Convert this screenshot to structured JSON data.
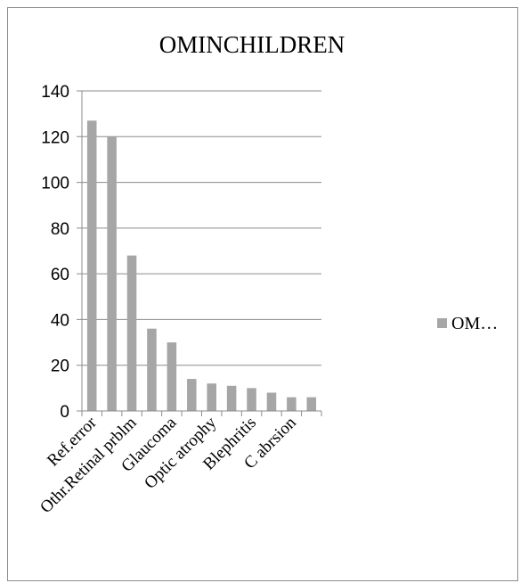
{
  "chart_data": {
    "type": "bar",
    "title": "OMINCHILDREN",
    "xlabel": "",
    "ylabel": "",
    "ylim": [
      0,
      140
    ],
    "yticks": [
      0,
      20,
      40,
      60,
      80,
      100,
      120,
      140
    ],
    "grid": true,
    "legend_position": "right",
    "categories": [
      "Ref.error",
      "",
      "Othr.Retinal prblm",
      "",
      "Glaucoma",
      "",
      "Optic atrophy",
      "",
      "Blephritis",
      "",
      "C abrsion",
      ""
    ],
    "series": [
      {
        "name": "OM…",
        "values": [
          127,
          120,
          68,
          36,
          30,
          14,
          12,
          11,
          10,
          8,
          6,
          6
        ]
      }
    ],
    "colors": {
      "bar": "#a6a6a6",
      "grid": "#8c8c8c",
      "axis": "#8c8c8c",
      "text": "#000000"
    }
  }
}
